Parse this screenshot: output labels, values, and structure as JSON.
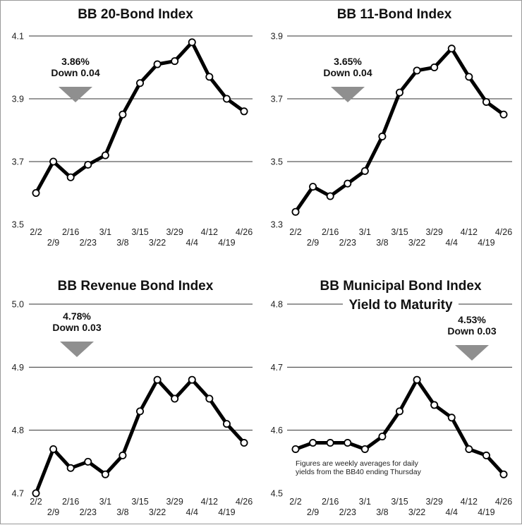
{
  "chart_data": [
    {
      "type": "line",
      "title": "BB 20-Bond Index",
      "categories": [
        "2/2",
        "2/9",
        "2/16",
        "2/23",
        "3/1",
        "3/8",
        "3/15",
        "3/22",
        "3/29",
        "4/4",
        "4/12",
        "4/19",
        "4/26"
      ],
      "values": [
        3.6,
        3.7,
        3.65,
        3.69,
        3.72,
        3.85,
        3.95,
        4.01,
        4.02,
        4.08,
        3.97,
        3.9,
        3.86
      ],
      "ylim": [
        3.5,
        4.1
      ],
      "yticks": [
        "3.5",
        "3.7",
        "3.9",
        "4.1"
      ],
      "grid": true,
      "callout": {
        "value": "3.86%",
        "change": "Down 0.04",
        "direction": "down"
      }
    },
    {
      "type": "line",
      "title": "BB 11-Bond Index",
      "categories": [
        "2/2",
        "2/9",
        "2/16",
        "2/23",
        "3/1",
        "3/8",
        "3/15",
        "3/22",
        "3/29",
        "4/4",
        "4/12",
        "4/19",
        "4/26"
      ],
      "values": [
        3.34,
        3.42,
        3.39,
        3.43,
        3.47,
        3.58,
        3.72,
        3.79,
        3.8,
        3.86,
        3.77,
        3.69,
        3.65
      ],
      "ylim": [
        3.3,
        3.9
      ],
      "yticks": [
        "3.3",
        "3.5",
        "3.7",
        "3.9"
      ],
      "grid": true,
      "callout": {
        "value": "3.65%",
        "change": "Down 0.04",
        "direction": "down"
      }
    },
    {
      "type": "line",
      "title": "BB Revenue Bond Index",
      "categories": [
        "2/2",
        "2/9",
        "2/16",
        "2/23",
        "3/1",
        "3/8",
        "3/15",
        "3/22",
        "3/29",
        "4/4",
        "4/12",
        "4/19",
        "4/26"
      ],
      "values": [
        4.7,
        4.77,
        4.74,
        4.75,
        4.73,
        4.76,
        4.83,
        4.88,
        4.85,
        4.88,
        4.85,
        4.81,
        4.78
      ],
      "ylim": [
        4.7,
        5.0
      ],
      "yticks": [
        "4.7",
        "4.8",
        "4.9",
        "5.0"
      ],
      "grid": true,
      "callout": {
        "value": "4.78%",
        "change": "Down 0.03",
        "direction": "down"
      }
    },
    {
      "type": "line",
      "title": "BB Municipal Bond Index",
      "subtitle": "Yield to Maturity",
      "categories": [
        "2/2",
        "2/9",
        "2/16",
        "2/23",
        "3/1",
        "3/8",
        "3/15",
        "3/22",
        "3/29",
        "4/4",
        "4/12",
        "4/19",
        "4/26"
      ],
      "values": [
        4.57,
        4.58,
        4.58,
        4.58,
        4.57,
        4.59,
        4.63,
        4.68,
        4.64,
        4.62,
        4.57,
        4.56,
        4.53
      ],
      "ylim": [
        4.5,
        4.8
      ],
      "yticks": [
        "4.5",
        "4.6",
        "4.7",
        "4.8"
      ],
      "grid": true,
      "callout": {
        "value": "4.53%",
        "change": "Down 0.03",
        "direction": "down"
      },
      "note": [
        "Figures are weekly averages for daily",
        "yields from the BB40 ending Thursday"
      ]
    }
  ],
  "colors": {
    "line": "#000000",
    "marker_fill": "#ffffff",
    "grid": "#333333",
    "arrow": "#8f8f8f",
    "border": "#9a9a9a"
  }
}
